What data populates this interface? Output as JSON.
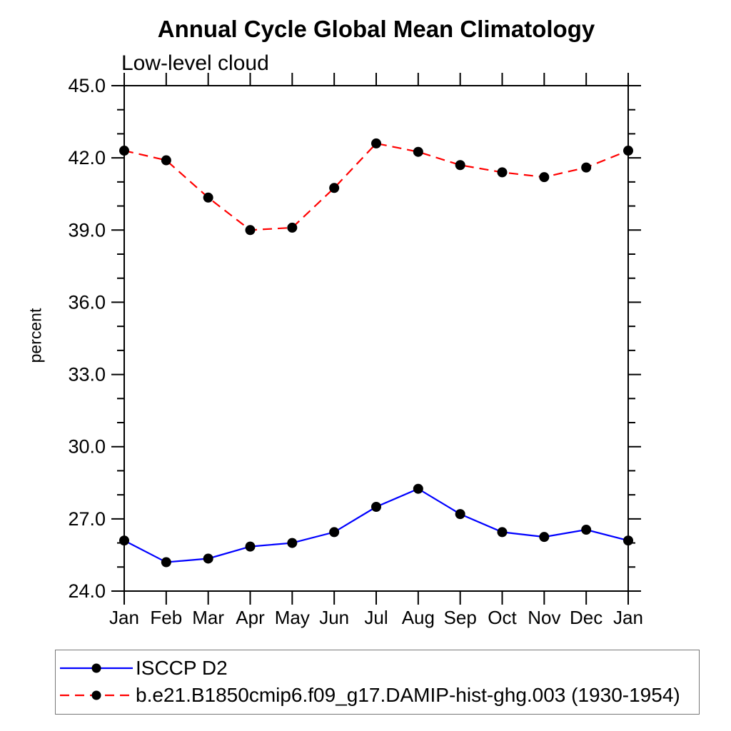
{
  "chart_data": {
    "type": "line",
    "title": "Annual Cycle Global Mean Climatology",
    "subtitle": "Low-level cloud",
    "ylabel": "percent",
    "xlabel": "",
    "categories": [
      "Jan",
      "Feb",
      "Mar",
      "Apr",
      "May",
      "Jun",
      "Jul",
      "Aug",
      "Sep",
      "Oct",
      "Nov",
      "Dec",
      "Jan"
    ],
    "ylim": [
      24.0,
      45.0
    ],
    "ytick_values": [
      24,
      27,
      30,
      33,
      36,
      39,
      42,
      45
    ],
    "ytick_labels": [
      "24.0",
      "27.0",
      "30.0",
      "33.0",
      "36.0",
      "39.0",
      "42.0",
      "45.0"
    ],
    "yminor_step": 1.0,
    "grid": false,
    "legend_position": "bottom-left-box",
    "axis_color": "#000000",
    "marker": "filled-circle",
    "marker_color": "#000000",
    "series": [
      {
        "name": "ISCCP D2",
        "color": "#0000ff",
        "line_style": "solid",
        "values": [
          26.1,
          25.2,
          25.35,
          25.85,
          26.0,
          26.45,
          27.5,
          28.25,
          27.2,
          26.45,
          26.25,
          26.55,
          26.1
        ]
      },
      {
        "name": "b.e21.B1850cmip6.f09_g17.DAMIP-hist-ghg.003 (1930-1954)",
        "color": "#ff0000",
        "line_style": "dashed",
        "values": [
          42.3,
          41.9,
          40.35,
          39.0,
          39.1,
          40.75,
          42.6,
          42.25,
          41.7,
          41.4,
          41.2,
          41.6,
          42.3
        ]
      }
    ]
  }
}
